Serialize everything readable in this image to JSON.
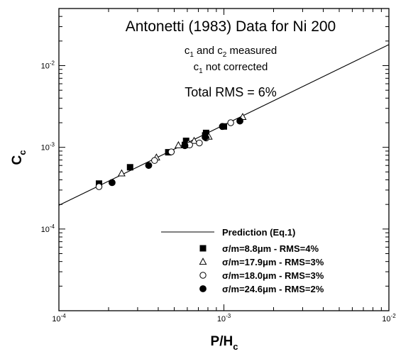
{
  "chart_data": {
    "type": "scatter",
    "title": "Antonetti (1983) Data for Ni 200",
    "subtitle_lines": [
      {
        "main": "c",
        "sub": "1",
        "rest": " and c",
        "sub2": "2",
        "rest2": " measured"
      },
      {
        "main": "c",
        "sub": "1",
        "rest": " not corrected",
        "sub2": "",
        "rest2": ""
      }
    ],
    "rms_text": "Total RMS = 6%",
    "xlabel": {
      "main": "P/H",
      "sub": "c"
    },
    "ylabel": {
      "main": "C",
      "sub": "c"
    },
    "x_scale": "log",
    "y_scale": "log",
    "xlim": [
      0.0001,
      0.01
    ],
    "ylim": [
      1e-05,
      0.05
    ],
    "x_ticks": [
      {
        "value": 0.0001,
        "label": "10",
        "exp": "-4"
      },
      {
        "value": 0.001,
        "label": "10",
        "exp": "-3"
      },
      {
        "value": 0.01,
        "label": "10",
        "exp": "-2"
      }
    ],
    "y_ticks": [
      {
        "value": 0.0001,
        "label": "10",
        "exp": "-4"
      },
      {
        "value": 0.001,
        "label": "10",
        "exp": "-3"
      },
      {
        "value": 0.01,
        "label": "10",
        "exp": "-2"
      }
    ],
    "grid": false,
    "legend_position": "bottom-right",
    "line": {
      "name": "Prediction (Eq.1)",
      "x": [
        0.0001,
        0.01
      ],
      "y": [
        0.000195,
        0.0181
      ]
    },
    "series": [
      {
        "name": "σ/m=8.8μm - RMS=4%",
        "marker": "square-filled",
        "x": [
          0.000175,
          0.00027,
          0.00046,
          0.00058,
          0.00059,
          0.00077,
          0.00078,
          0.001
        ],
        "y": [
          0.00036,
          0.00057,
          0.00087,
          0.00107,
          0.0012,
          0.0014,
          0.0015,
          0.0018
        ]
      },
      {
        "name": "σ/m=17.9μm - RMS=3%",
        "marker": "triangle-open",
        "x": [
          0.00024,
          0.00039,
          0.00053,
          0.00061,
          0.00066,
          0.00081,
          0.0013
        ],
        "y": [
          0.00048,
          0.00075,
          0.00106,
          0.00112,
          0.0012,
          0.00135,
          0.00235
        ]
      },
      {
        "name": "σ/m=18.0μm - RMS=3%",
        "marker": "circle-open",
        "x": [
          0.000175,
          0.00038,
          0.00048,
          0.00062,
          0.00071,
          0.00078,
          0.0011
        ],
        "y": [
          0.00033,
          0.00069,
          0.00088,
          0.00107,
          0.00113,
          0.0013,
          0.002
        ]
      },
      {
        "name": "σ/m=24.6μm - RMS=2%",
        "marker": "circle-filled",
        "x": [
          0.00021,
          0.00035,
          0.00058,
          0.00077,
          0.00098,
          0.00125
        ],
        "y": [
          0.00037,
          0.0006,
          0.00105,
          0.00133,
          0.0018,
          0.0021
        ]
      }
    ]
  }
}
